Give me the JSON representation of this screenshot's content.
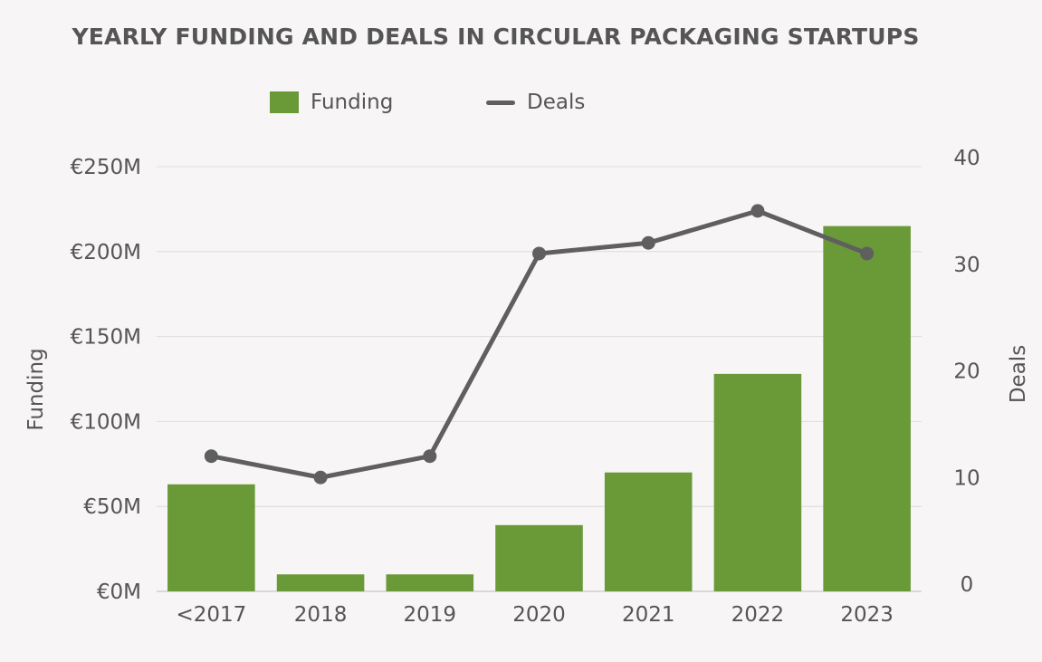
{
  "chart_data": {
    "type": "bar",
    "title": "YEARLY FUNDING AND DEALS IN CIRCULAR PACKAGING STARTUPS",
    "categories": [
      "<2017",
      "2018",
      "2019",
      "2020",
      "2021",
      "2022",
      "2023"
    ],
    "series": [
      {
        "name": "Funding",
        "type": "bar",
        "axis": "left",
        "color": "#6a9a38",
        "values": [
          63,
          10,
          10,
          39,
          70,
          128,
          215
        ]
      },
      {
        "name": "Deals",
        "type": "line",
        "axis": "right",
        "color": "#5f5f5f",
        "values": [
          12,
          10,
          12,
          31,
          32,
          35,
          31
        ]
      }
    ],
    "ylabel": "Funding",
    "ylabel_right": "Deals",
    "ylim": [
      0,
      250
    ],
    "ylim_right": [
      0,
      40
    ],
    "yticks": [
      0,
      50,
      100,
      150,
      200,
      250
    ],
    "ytick_labels": [
      "€0M",
      "€50M",
      "€100M",
      "€150M",
      "€200M",
      "€250M"
    ],
    "yticks_right": [
      0,
      10,
      20,
      30,
      40
    ],
    "ytick_labels_right": [
      "0",
      "10",
      "20",
      "30",
      "40"
    ],
    "grid": true,
    "legend_position": "top-center"
  }
}
